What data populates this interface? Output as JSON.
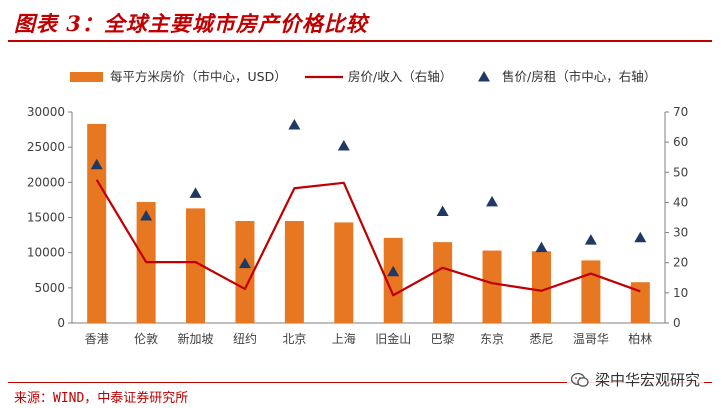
{
  "header": {
    "title": "图表 3：全球主要城市房产价格比较"
  },
  "footer": {
    "source": "来源：WIND，中泰证券研究所",
    "watermark": "梁中华宏观研究"
  },
  "colors": {
    "bar": "#e87722",
    "line": "#c00000",
    "marker": "#1f3864",
    "accent": "#c00000"
  },
  "chart_data": {
    "type": "bar",
    "categories": [
      "香港",
      "伦敦",
      "新加坡",
      "纽约",
      "北京",
      "上海",
      "旧金山",
      "巴黎",
      "东京",
      "悉尼",
      "温哥华",
      "柏林"
    ],
    "series": [
      {
        "name": "每平方米房价（市中心，USD）",
        "type": "bar",
        "axis": "left",
        "values": [
          28300,
          17200,
          16300,
          14500,
          14500,
          14300,
          12100,
          11500,
          10300,
          10200,
          8900,
          5800
        ]
      },
      {
        "name": "房价/收入（右轴）",
        "type": "line",
        "axis": "right",
        "values": [
          47.5,
          20.2,
          20.2,
          11.3,
          44.7,
          46.5,
          9.2,
          18.3,
          13.2,
          10.7,
          16.4,
          10.5
        ]
      },
      {
        "name": "售价/房租（市中心，右轴）",
        "type": "scatter",
        "axis": "right",
        "values": [
          52.5,
          35.5,
          43,
          19.7,
          65.7,
          58.7,
          17,
          37,
          40.2,
          25,
          27.5,
          28.3
        ]
      }
    ],
    "y_left": {
      "min": 0,
      "max": 30000,
      "ticks": [
        0,
        5000,
        10000,
        15000,
        20000,
        25000,
        30000
      ]
    },
    "y_right": {
      "min": 0,
      "max": 70,
      "ticks": [
        0,
        10,
        20,
        30,
        40,
        50,
        60,
        70
      ]
    },
    "grid": false,
    "legend_position": "top"
  }
}
